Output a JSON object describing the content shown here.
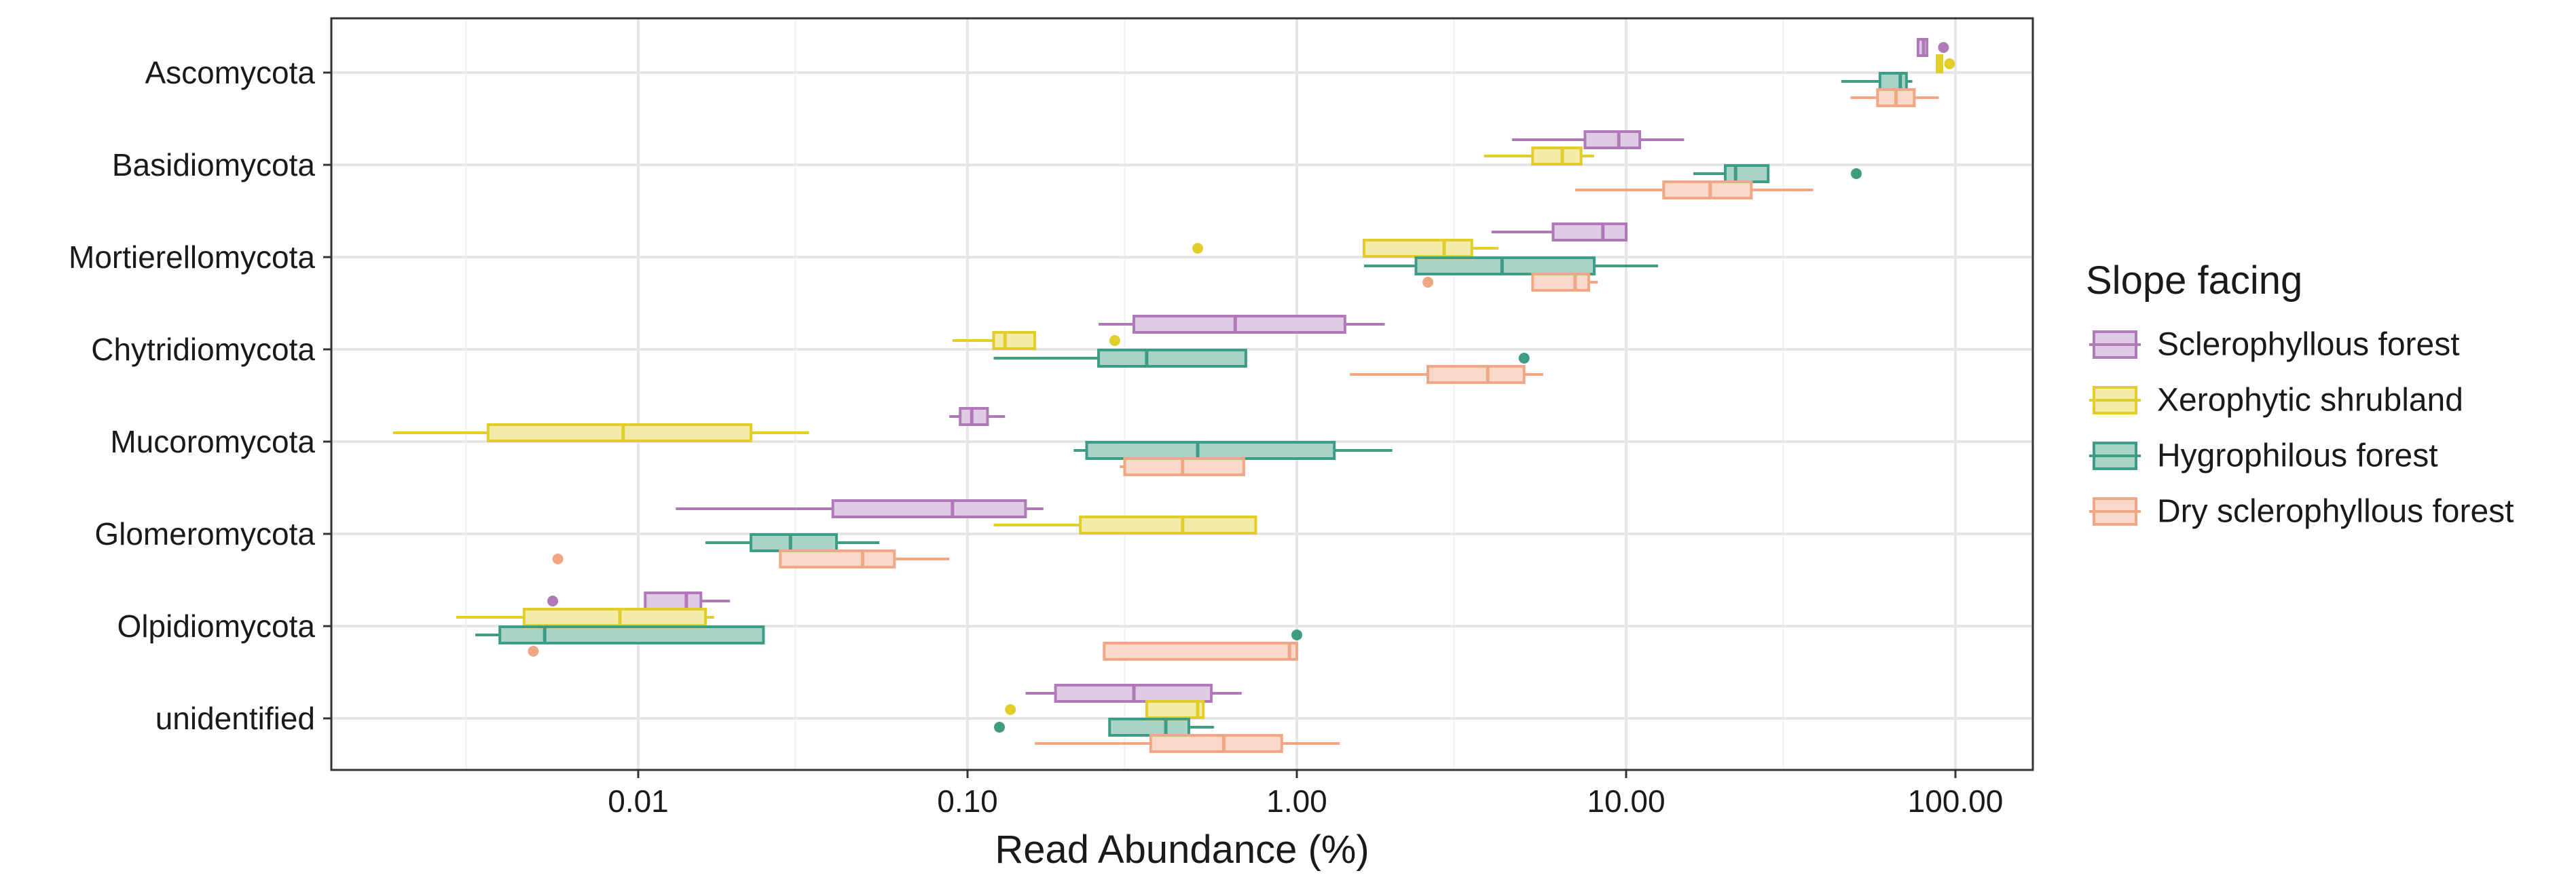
{
  "chart_data": {
    "type": "boxplot",
    "orientation": "horizontal",
    "x_scale": "log10",
    "xlabel": "Read Abundance (%)",
    "ylabel": "",
    "xlim": [
      0.001,
      200
    ],
    "x_ticks": [
      {
        "value": 0.01,
        "label": "0.01"
      },
      {
        "value": 0.1,
        "label": "0.10"
      },
      {
        "value": 1,
        "label": "1.00"
      },
      {
        "value": 10,
        "label": "10.00"
      },
      {
        "value": 100,
        "label": "100.00"
      }
    ],
    "grid": true,
    "categories": [
      "Ascomycota",
      "Basidiomycota",
      "Mortierellomycota",
      "Chytridiomycota",
      "Mucoromycota",
      "Glomeromycota",
      "Olpidiomycota",
      "unidentified"
    ],
    "legend": {
      "title": "Slope facing",
      "position": "right",
      "entries": [
        "Sclerophyllous forest",
        "Xerophytic shrubland",
        "Hygrophilous forest",
        "Dry sclerophyllous forest"
      ]
    },
    "series": [
      {
        "name": "Sclerophyllous forest",
        "stroke": "#B07AB8",
        "fill": "#E0CBE4",
        "boxes": [
          {
            "category": "Ascomycota",
            "whisker_low": 77,
            "q1": 77,
            "median": 80,
            "q3": 82,
            "whisker_high": 82,
            "outliers": [
              92
            ]
          },
          {
            "category": "Basidiomycota",
            "whisker_low": 4.5,
            "q1": 7.5,
            "median": 9.5,
            "q3": 11,
            "whisker_high": 15,
            "outliers": []
          },
          {
            "category": "Mortierellomycota",
            "whisker_low": 3.9,
            "q1": 6,
            "median": 8.5,
            "q3": 10,
            "whisker_high": 10,
            "outliers": []
          },
          {
            "category": "Chytridiomycota",
            "whisker_low": 0.25,
            "q1": 0.32,
            "median": 0.65,
            "q3": 1.4,
            "whisker_high": 1.85,
            "outliers": []
          },
          {
            "category": "Mucoromycota",
            "whisker_low": 0.088,
            "q1": 0.095,
            "median": 0.103,
            "q3": 0.115,
            "whisker_high": 0.13,
            "outliers": []
          },
          {
            "category": "Glomeromycota",
            "whisker_low": 0.013,
            "q1": 0.039,
            "median": 0.09,
            "q3": 0.15,
            "whisker_high": 0.17,
            "outliers": []
          },
          {
            "category": "Olpidiomycota",
            "whisker_low": 0.0105,
            "q1": 0.0105,
            "median": 0.014,
            "q3": 0.0155,
            "whisker_high": 0.019,
            "outliers": [
              0.0055
            ]
          },
          {
            "category": "unidentified",
            "whisker_low": 0.15,
            "q1": 0.185,
            "median": 0.32,
            "q3": 0.55,
            "whisker_high": 0.68,
            "outliers": []
          }
        ]
      },
      {
        "name": "Xerophytic shrubland",
        "stroke": "#E2CE2A",
        "fill": "#F3EBA8",
        "boxes": [
          {
            "category": "Ascomycota",
            "whisker_low": 88,
            "q1": 88,
            "median": 90,
            "q3": 91,
            "whisker_high": 91,
            "outliers": [
              96
            ]
          },
          {
            "category": "Basidiomycota",
            "whisker_low": 3.7,
            "q1": 5.2,
            "median": 6.4,
            "q3": 7.3,
            "whisker_high": 8,
            "outliers": []
          },
          {
            "category": "Mortierellomycota",
            "whisker_low": 1.6,
            "q1": 1.6,
            "median": 2.8,
            "q3": 3.4,
            "whisker_high": 4.1,
            "outliers": [
              0.5
            ]
          },
          {
            "category": "Chytridiomycota",
            "whisker_low": 0.09,
            "q1": 0.12,
            "median": 0.13,
            "q3": 0.16,
            "whisker_high": 0.16,
            "outliers": [
              0.28
            ]
          },
          {
            "category": "Mucoromycota",
            "whisker_low": 0.0018,
            "q1": 0.0035,
            "median": 0.009,
            "q3": 0.022,
            "whisker_high": 0.033,
            "outliers": []
          },
          {
            "category": "Glomeromycota",
            "whisker_low": 0.12,
            "q1": 0.22,
            "median": 0.45,
            "q3": 0.75,
            "whisker_high": 0.75,
            "outliers": []
          },
          {
            "category": "Olpidiomycota",
            "whisker_low": 0.0028,
            "q1": 0.0045,
            "median": 0.0088,
            "q3": 0.016,
            "whisker_high": 0.017,
            "outliers": []
          },
          {
            "category": "unidentified",
            "whisker_low": 0.35,
            "q1": 0.35,
            "median": 0.5,
            "q3": 0.52,
            "whisker_high": 0.52,
            "outliers": [
              0.135
            ]
          }
        ]
      },
      {
        "name": "Hygrophilous forest",
        "stroke": "#3F9C84",
        "fill": "#A8D4C6",
        "boxes": [
          {
            "category": "Ascomycota",
            "whisker_low": 45,
            "q1": 59,
            "median": 68,
            "q3": 71,
            "whisker_high": 74,
            "outliers": []
          },
          {
            "category": "Basidiomycota",
            "whisker_low": 16,
            "q1": 20,
            "median": 21.5,
            "q3": 27,
            "whisker_high": 27,
            "outliers": [
              50
            ]
          },
          {
            "category": "Mortierellomycota",
            "whisker_low": 1.6,
            "q1": 2.3,
            "median": 4.2,
            "q3": 8,
            "whisker_high": 12.5,
            "outliers": []
          },
          {
            "category": "Chytridiomycota",
            "whisker_low": 0.12,
            "q1": 0.25,
            "median": 0.35,
            "q3": 0.7,
            "whisker_high": 0.7,
            "outliers": [
              4.9
            ]
          },
          {
            "category": "Mucoromycota",
            "whisker_low": 0.21,
            "q1": 0.23,
            "median": 0.5,
            "q3": 1.3,
            "whisker_high": 1.95,
            "outliers": []
          },
          {
            "category": "Glomeromycota",
            "whisker_low": 0.016,
            "q1": 0.022,
            "median": 0.029,
            "q3": 0.04,
            "whisker_high": 0.054,
            "outliers": []
          },
          {
            "category": "Olpidiomycota",
            "whisker_low": 0.0032,
            "q1": 0.0038,
            "median": 0.0052,
            "q3": 0.024,
            "whisker_high": 0.024,
            "outliers": [
              1.0
            ]
          },
          {
            "category": "unidentified",
            "whisker_low": 0.27,
            "q1": 0.27,
            "median": 0.4,
            "q3": 0.47,
            "whisker_high": 0.56,
            "outliers": [
              0.125
            ]
          }
        ]
      },
      {
        "name": "Dry sclerophyllous forest",
        "stroke": "#EFA786",
        "fill": "#F8D8C8",
        "boxes": [
          {
            "category": "Ascomycota",
            "whisker_low": 48,
            "q1": 58,
            "median": 66,
            "q3": 75,
            "whisker_high": 89,
            "outliers": []
          },
          {
            "category": "Basidiomycota",
            "whisker_low": 7,
            "q1": 13,
            "median": 18,
            "q3": 24,
            "whisker_high": 37,
            "outliers": []
          },
          {
            "category": "Mortierellomycota",
            "whisker_low": 5.2,
            "q1": 5.2,
            "median": 7,
            "q3": 7.7,
            "whisker_high": 8.2,
            "outliers": [
              2.5
            ]
          },
          {
            "category": "Chytridiomycota",
            "whisker_low": 1.45,
            "q1": 2.5,
            "median": 3.8,
            "q3": 4.9,
            "whisker_high": 5.6,
            "outliers": []
          },
          {
            "category": "Mucoromycota",
            "whisker_low": 0.29,
            "q1": 0.3,
            "median": 0.45,
            "q3": 0.69,
            "whisker_high": 0.69,
            "outliers": []
          },
          {
            "category": "Glomeromycota",
            "whisker_low": 0.027,
            "q1": 0.027,
            "median": 0.048,
            "q3": 0.06,
            "whisker_high": 0.088,
            "outliers": [
              0.0057
            ]
          },
          {
            "category": "Olpidiomycota",
            "whisker_low": 0.26,
            "q1": 0.26,
            "median": 0.95,
            "q3": 1.0,
            "whisker_high": 1.0,
            "outliers": [
              0.0048
            ]
          },
          {
            "category": "unidentified",
            "whisker_low": 0.16,
            "q1": 0.36,
            "median": 0.6,
            "q3": 0.9,
            "whisker_high": 1.35,
            "outliers": []
          }
        ]
      }
    ]
  }
}
